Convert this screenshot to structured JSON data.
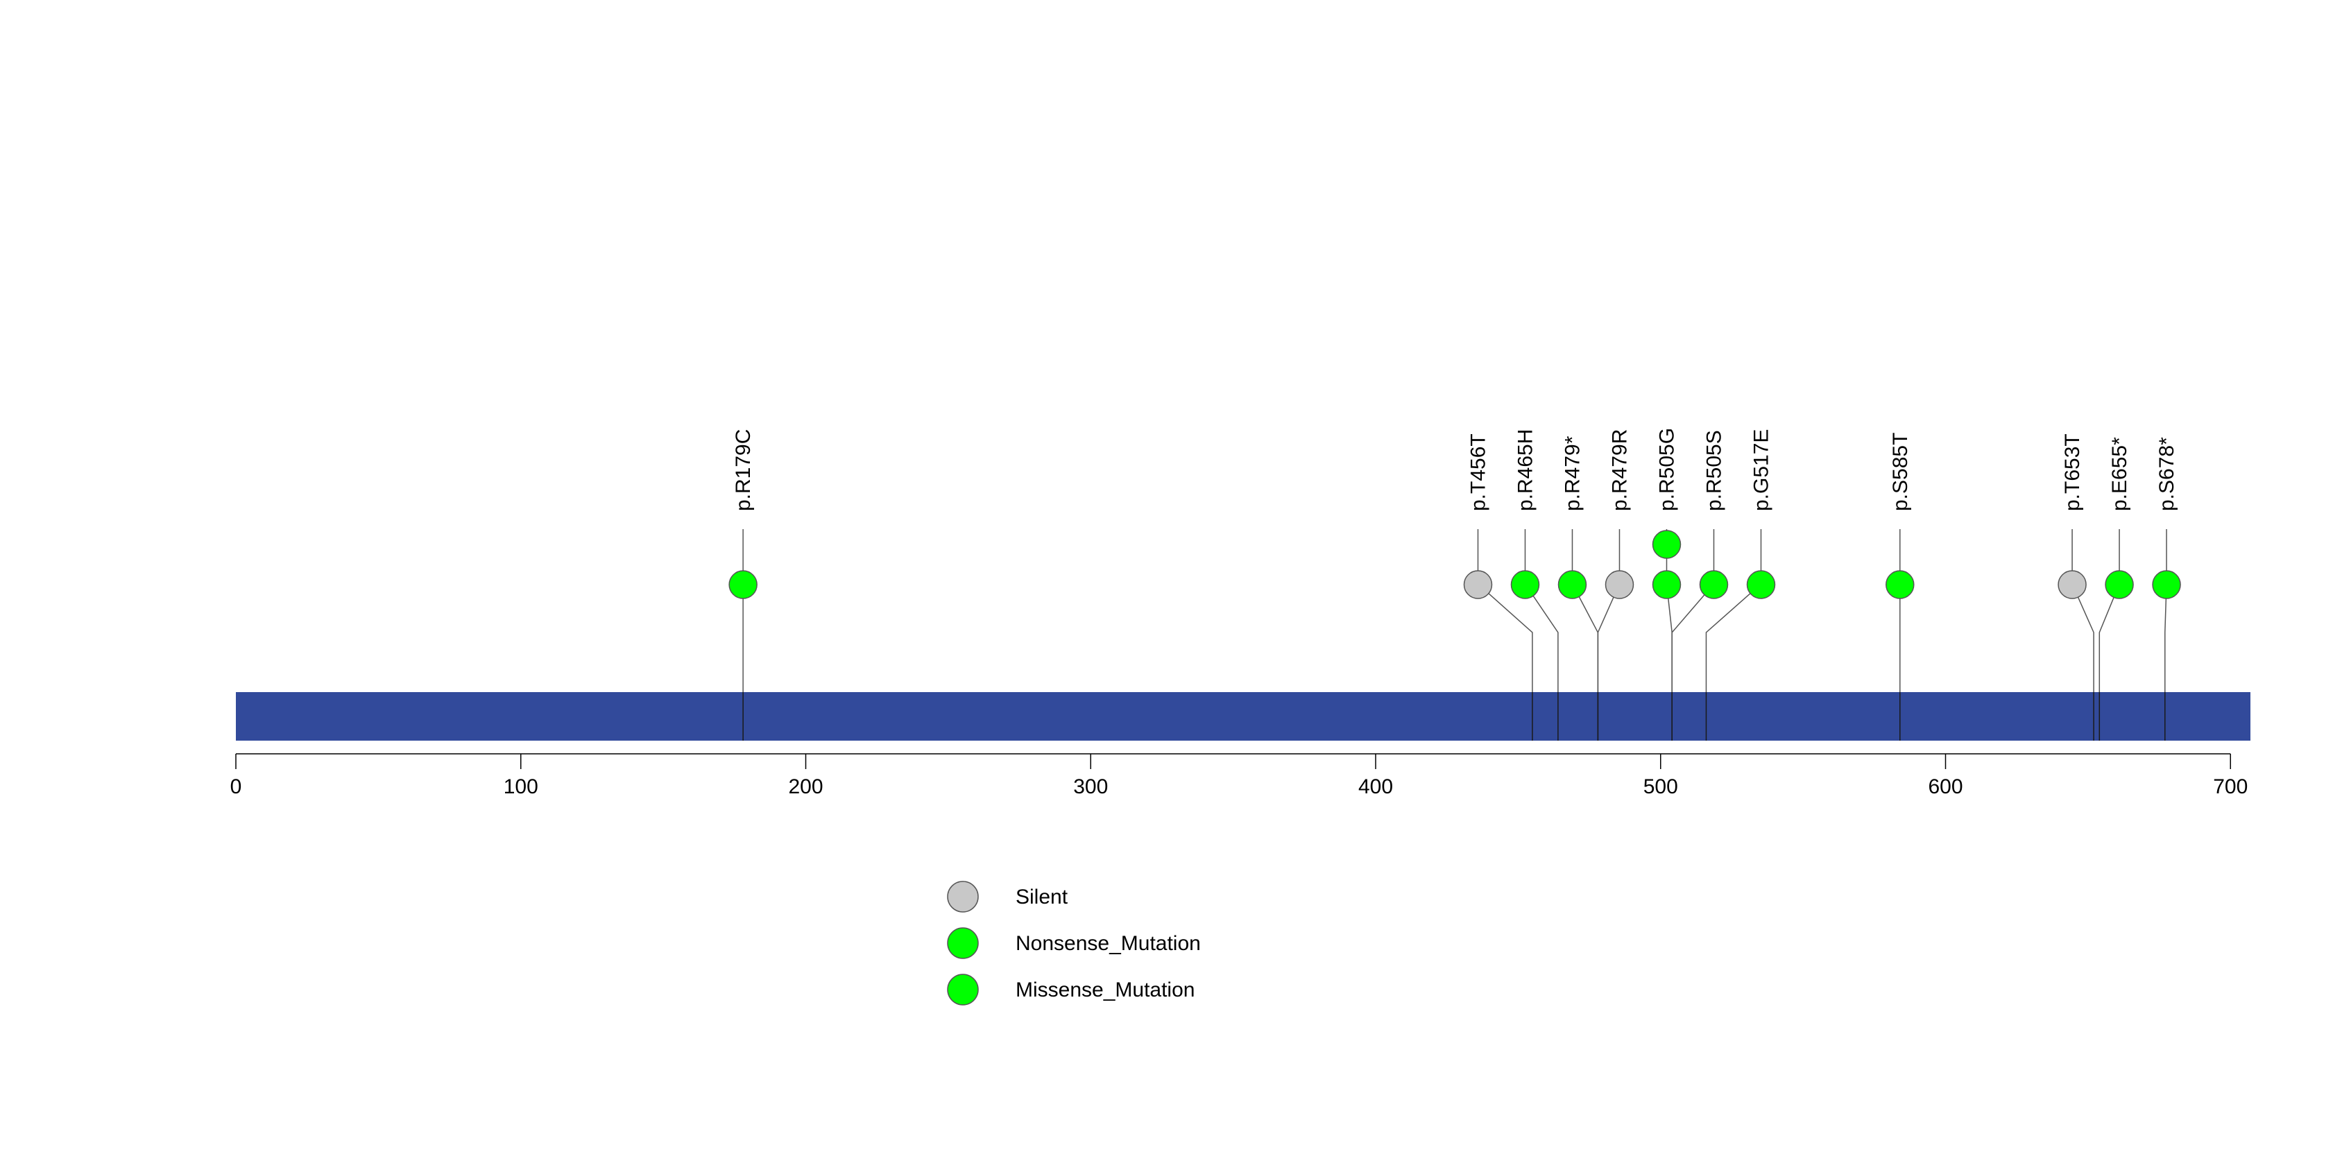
{
  "chart_data": {
    "type": "lollipop",
    "title": "",
    "xlabel": "",
    "ylabel": "",
    "protein_length": 707,
    "xlim": [
      0,
      707
    ],
    "ticks": [
      0,
      100,
      200,
      300,
      400,
      500,
      600,
      700
    ],
    "tick_labels": [
      "0",
      "100",
      "200",
      "300",
      "400",
      "500",
      "600",
      "700"
    ],
    "grid": false,
    "colors": {
      "protein_bar": "#324A9B",
      "stem": "#555555",
      "Silent": "#C8C8C8",
      "Nonsense_Mutation": "#00FF00",
      "Missense_Mutation": "#00FF00"
    },
    "mutations": [
      {
        "label": "p.R179C",
        "position": 178,
        "type": "Missense_Mutation",
        "count": 1
      },
      {
        "label": "p.T456T",
        "position": 455,
        "type": "Silent",
        "count": 1
      },
      {
        "label": "p.R465H",
        "position": 464,
        "type": "Missense_Mutation",
        "count": 1
      },
      {
        "label": "p.R479*",
        "position": 478,
        "type": "Nonsense_Mutation",
        "count": 1
      },
      {
        "label": "p.R479R",
        "position": 478,
        "type": "Silent",
        "count": 1
      },
      {
        "label": "p.R505G",
        "position": 504,
        "type": "Missense_Mutation",
        "count": 2
      },
      {
        "label": "p.R505S",
        "position": 504,
        "type": "Missense_Mutation",
        "count": 1
      },
      {
        "label": "p.G517E",
        "position": 516,
        "type": "Missense_Mutation",
        "count": 1
      },
      {
        "label": "p.S585T",
        "position": 584,
        "type": "Missense_Mutation",
        "count": 1
      },
      {
        "label": "p.T653T",
        "position": 652,
        "type": "Silent",
        "count": 1
      },
      {
        "label": "p.E655*",
        "position": 654,
        "type": "Nonsense_Mutation",
        "count": 1
      },
      {
        "label": "p.S678*",
        "position": 677,
        "type": "Nonsense_Mutation",
        "count": 1
      }
    ],
    "legend": {
      "placement": "bottom-center",
      "entries": [
        {
          "label": "Silent",
          "type": "Silent"
        },
        {
          "label": "Nonsense_Mutation",
          "type": "Nonsense_Mutation"
        },
        {
          "label": "Missense_Mutation",
          "type": "Missense_Mutation"
        }
      ]
    }
  }
}
